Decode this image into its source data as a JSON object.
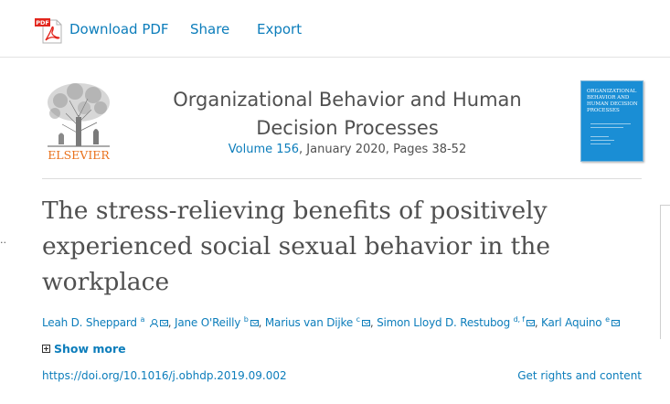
{
  "toolbar": {
    "download_pdf": "Download PDF",
    "share": "Share",
    "export": "Export",
    "pdf_badge": "PDF"
  },
  "publisher": {
    "logo_text": "ELSEVIER"
  },
  "journal": {
    "title": "Organizational Behavior and Human Decision Processes",
    "volume_link": "Volume 156",
    "issue_info": ", January 2020, Pages 38-52",
    "cover_title": "Organizational Behavior and Human Decision Processes"
  },
  "article": {
    "title": "The stress-relieving benefits of positively experienced social sexual behavior in the workplace",
    "authors": [
      {
        "name": "Leah D. Sheppard",
        "sup": "a"
      },
      {
        "name": "Jane O'Reilly",
        "sup": "b"
      },
      {
        "name": "Marius van Dijke",
        "sup": "c"
      },
      {
        "name": "Simon Lloyd D. Restubog",
        "sup": "d, f"
      },
      {
        "name": "Karl Aquino",
        "sup": "e"
      }
    ],
    "show_more": "Show more",
    "doi": "https://doi.org/10.1016/j.obhdp.2019.09.002",
    "rights": "Get rights and content"
  },
  "misc": {
    "left_marker": ".."
  },
  "colors": {
    "link": "#0c7dbb",
    "text": "#505050",
    "elsevier_orange": "#e9711c",
    "cover_blue": "#1a8ed5"
  }
}
